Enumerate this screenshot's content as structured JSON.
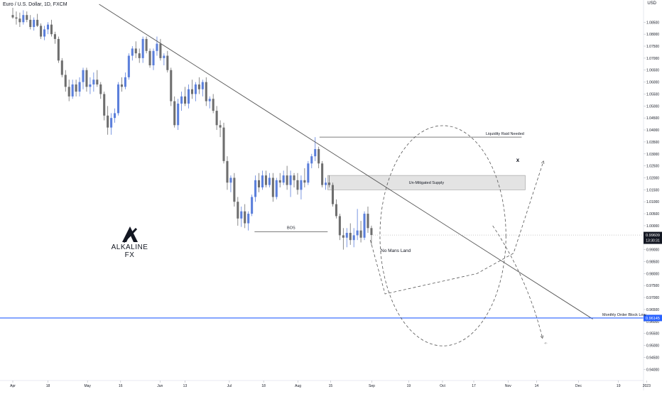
{
  "header": {
    "title": "Euro / U.S. Dollar, 1D, FXCM",
    "currency": "USD"
  },
  "brand": {
    "name": "ALKALINE FX",
    "logo_icon": "alkaline-logo-icon"
  },
  "annotations": {
    "liquidity_raid": "Liquidity Raid Needed",
    "supply_zone": "Un-Mitigated Supply",
    "no_mans_land": "No Mans Land",
    "bos": "BOS",
    "order_block": "Monthly Order Block Low",
    "x_mark": "x",
    "path_end_mark": "-//-"
  },
  "price_tags": {
    "current_price": "0.99609",
    "countdown": "13:30:31",
    "order_block_price": "0.96145"
  },
  "colors": {
    "bull": "#5b7fdb",
    "bear": "#6e6e6e",
    "horizontal_line": "#2962ff",
    "current_tag": "#131722",
    "trendline": "#555555"
  },
  "chart_data": {
    "type": "candlestick",
    "title": "Euro / U.S. Dollar, 1D, FXCM",
    "y_axis_label": "USD",
    "ylim": [
      0.938,
      1.0925
    ],
    "y_ticks": [
      "1.08500",
      "1.08000",
      "1.07500",
      "1.07000",
      "1.06500",
      "1.06000",
      "1.05500",
      "1.05000",
      "1.04500",
      "1.04000",
      "1.03500",
      "1.03000",
      "1.02500",
      "1.02000",
      "1.01500",
      "1.01000",
      "1.00500",
      "1.00000",
      "0.99500",
      "0.99000",
      "0.98500",
      "0.98000",
      "0.97500",
      "0.97000",
      "0.96500",
      "0.96000",
      "0.95500",
      "0.95000",
      "0.94500",
      "0.94000"
    ],
    "x_ticks": [
      {
        "label": "Apr",
        "t": 0
      },
      {
        "label": "18",
        "t": 0.0692
      },
      {
        "label": "May",
        "t": 0.1471
      },
      {
        "label": "16",
        "t": 0.2123
      },
      {
        "label": "Jun",
        "t": 0.2899
      },
      {
        "label": "13",
        "t": 0.3391
      },
      {
        "label": "Jul",
        "t": 0.4264
      },
      {
        "label": "18",
        "t": 0.4939
      },
      {
        "label": "Aug",
        "t": 0.5617
      },
      {
        "label": "15",
        "t": 0.6257
      },
      {
        "label": "Sep",
        "t": 0.707
      },
      {
        "label": "19",
        "t": 0.7796
      },
      {
        "label": "Oct",
        "t": 0.8461
      },
      {
        "label": "17",
        "t": 0.9077
      },
      {
        "label": "Nov",
        "t": 0.9753
      },
      {
        "label": "14",
        "t": 1.0314
      },
      {
        "label": "Dec",
        "t": 1.114
      },
      {
        "label": "19",
        "t": 1.1926
      },
      {
        "label": "2023",
        "t": 1.248
      }
    ],
    "candles": [
      {
        "o": 1.088,
        "h": 1.091,
        "l": 1.0865,
        "c": 1.087
      },
      {
        "o": 1.087,
        "h": 1.0895,
        "l": 1.084,
        "c": 1.0865
      },
      {
        "o": 1.0865,
        "h": 1.089,
        "l": 1.083,
        "c": 1.085
      },
      {
        "o": 1.085,
        "h": 1.09,
        "l": 1.084,
        "c": 1.088
      },
      {
        "o": 1.088,
        "h": 1.0895,
        "l": 1.085,
        "c": 1.086
      },
      {
        "o": 1.086,
        "h": 1.088,
        "l": 1.082,
        "c": 1.083
      },
      {
        "o": 1.083,
        "h": 1.087,
        "l": 1.0815,
        "c": 1.086
      },
      {
        "o": 1.086,
        "h": 1.0885,
        "l": 1.083,
        "c": 1.0835
      },
      {
        "o": 1.0835,
        "h": 1.0845,
        "l": 1.078,
        "c": 1.079
      },
      {
        "o": 1.079,
        "h": 1.0835,
        "l": 1.0775,
        "c": 1.082
      },
      {
        "o": 1.082,
        "h": 1.085,
        "l": 1.08,
        "c": 1.084
      },
      {
        "o": 1.084,
        "h": 1.086,
        "l": 1.079,
        "c": 1.08
      },
      {
        "o": 1.08,
        "h": 1.081,
        "l": 1.076,
        "c": 1.078
      },
      {
        "o": 1.078,
        "h": 1.079,
        "l": 1.068,
        "c": 1.069
      },
      {
        "o": 1.069,
        "h": 1.07,
        "l": 1.062,
        "c": 1.063
      },
      {
        "o": 1.063,
        "h": 1.065,
        "l": 1.056,
        "c": 1.058
      },
      {
        "o": 1.058,
        "h": 1.061,
        "l": 1.052,
        "c": 1.054
      },
      {
        "o": 1.054,
        "h": 1.061,
        "l": 1.053,
        "c": 1.059
      },
      {
        "o": 1.059,
        "h": 1.061,
        "l": 1.054,
        "c": 1.056
      },
      {
        "o": 1.056,
        "h": 1.062,
        "l": 1.054,
        "c": 1.06
      },
      {
        "o": 1.06,
        "h": 1.066,
        "l": 1.057,
        "c": 1.065
      },
      {
        "o": 1.065,
        "h": 1.066,
        "l": 1.056,
        "c": 1.058
      },
      {
        "o": 1.058,
        "h": 1.062,
        "l": 1.055,
        "c": 1.059
      },
      {
        "o": 1.059,
        "h": 1.064,
        "l": 1.056,
        "c": 1.061
      },
      {
        "o": 1.061,
        "h": 1.065,
        "l": 1.058,
        "c": 1.059
      },
      {
        "o": 1.059,
        "h": 1.06,
        "l": 1.053,
        "c": 1.055
      },
      {
        "o": 1.055,
        "h": 1.056,
        "l": 1.044,
        "c": 1.046
      },
      {
        "o": 1.046,
        "h": 1.05,
        "l": 1.038,
        "c": 1.041
      },
      {
        "o": 1.041,
        "h": 1.047,
        "l": 1.038,
        "c": 1.045
      },
      {
        "o": 1.045,
        "h": 1.049,
        "l": 1.043,
        "c": 1.047
      },
      {
        "o": 1.047,
        "h": 1.06,
        "l": 1.046,
        "c": 1.059
      },
      {
        "o": 1.059,
        "h": 1.062,
        "l": 1.056,
        "c": 1.058
      },
      {
        "o": 1.058,
        "h": 1.064,
        "l": 1.057,
        "c": 1.062
      },
      {
        "o": 1.062,
        "h": 1.072,
        "l": 1.061,
        "c": 1.071
      },
      {
        "o": 1.071,
        "h": 1.075,
        "l": 1.069,
        "c": 1.074
      },
      {
        "o": 1.074,
        "h": 1.077,
        "l": 1.07,
        "c": 1.072
      },
      {
        "o": 1.072,
        "h": 1.074,
        "l": 1.068,
        "c": 1.07
      },
      {
        "o": 1.07,
        "h": 1.079,
        "l": 1.068,
        "c": 1.078
      },
      {
        "o": 1.078,
        "h": 1.079,
        "l": 1.072,
        "c": 1.073
      },
      {
        "o": 1.073,
        "h": 1.074,
        "l": 1.066,
        "c": 1.067
      },
      {
        "o": 1.067,
        "h": 1.074,
        "l": 1.065,
        "c": 1.073
      },
      {
        "o": 1.073,
        "h": 1.079,
        "l": 1.071,
        "c": 1.076
      },
      {
        "o": 1.076,
        "h": 1.078,
        "l": 1.069,
        "c": 1.07
      },
      {
        "o": 1.07,
        "h": 1.072,
        "l": 1.067,
        "c": 1.071
      },
      {
        "o": 1.071,
        "h": 1.073,
        "l": 1.064,
        "c": 1.065
      },
      {
        "o": 1.065,
        "h": 1.066,
        "l": 1.05,
        "c": 1.052
      },
      {
        "o": 1.052,
        "h": 1.054,
        "l": 1.041,
        "c": 1.042
      },
      {
        "o": 1.042,
        "h": 1.053,
        "l": 1.04,
        "c": 1.051
      },
      {
        "o": 1.051,
        "h": 1.056,
        "l": 1.048,
        "c": 1.054
      },
      {
        "o": 1.054,
        "h": 1.058,
        "l": 1.05,
        "c": 1.051
      },
      {
        "o": 1.051,
        "h": 1.059,
        "l": 1.049,
        "c": 1.057
      },
      {
        "o": 1.057,
        "h": 1.061,
        "l": 1.053,
        "c": 1.055
      },
      {
        "o": 1.055,
        "h": 1.06,
        "l": 1.052,
        "c": 1.059
      },
      {
        "o": 1.059,
        "h": 1.062,
        "l": 1.055,
        "c": 1.057
      },
      {
        "o": 1.057,
        "h": 1.061,
        "l": 1.054,
        "c": 1.06
      },
      {
        "o": 1.06,
        "h": 1.062,
        "l": 1.05,
        "c": 1.052
      },
      {
        "o": 1.052,
        "h": 1.054,
        "l": 1.049,
        "c": 1.053
      },
      {
        "o": 1.053,
        "h": 1.055,
        "l": 1.047,
        "c": 1.048
      },
      {
        "o": 1.048,
        "h": 1.05,
        "l": 1.04,
        "c": 1.042
      },
      {
        "o": 1.042,
        "h": 1.044,
        "l": 1.037,
        "c": 1.041
      },
      {
        "o": 1.041,
        "h": 1.043,
        "l": 1.026,
        "c": 1.027
      },
      {
        "o": 1.027,
        "h": 1.029,
        "l": 1.015,
        "c": 1.018
      },
      {
        "o": 1.018,
        "h": 1.021,
        "l": 1.014,
        "c": 1.02
      },
      {
        "o": 1.02,
        "h": 1.022,
        "l": 1.008,
        "c": 1.01
      },
      {
        "o": 1.01,
        "h": 1.012,
        "l": 1.0,
        "c": 1.003
      },
      {
        "o": 1.003,
        "h": 1.008,
        "l": 0.9995,
        "c": 1.006
      },
      {
        "o": 1.006,
        "h": 1.009,
        "l": 0.999,
        "c": 1.001
      },
      {
        "o": 1.001,
        "h": 1.006,
        "l": 0.998,
        "c": 1.005
      },
      {
        "o": 1.005,
        "h": 1.013,
        "l": 1.004,
        "c": 1.012
      },
      {
        "o": 1.012,
        "h": 1.021,
        "l": 1.01,
        "c": 1.019
      },
      {
        "o": 1.019,
        "h": 1.022,
        "l": 1.014,
        "c": 1.016
      },
      {
        "o": 1.016,
        "h": 1.023,
        "l": 1.015,
        "c": 1.021
      },
      {
        "o": 1.021,
        "h": 1.023,
        "l": 1.016,
        "c": 1.017
      },
      {
        "o": 1.017,
        "h": 1.022,
        "l": 1.016,
        "c": 1.02
      },
      {
        "o": 1.02,
        "h": 1.022,
        "l": 1.01,
        "c": 1.012
      },
      {
        "o": 1.012,
        "h": 1.02,
        "l": 1.011,
        "c": 1.019
      },
      {
        "o": 1.019,
        "h": 1.022,
        "l": 1.016,
        "c": 1.018
      },
      {
        "o": 1.018,
        "h": 1.023,
        "l": 1.017,
        "c": 1.021
      },
      {
        "o": 1.021,
        "h": 1.025,
        "l": 1.015,
        "c": 1.017
      },
      {
        "o": 1.017,
        "h": 1.023,
        "l": 1.012,
        "c": 1.021
      },
      {
        "o": 1.021,
        "h": 1.022,
        "l": 1.016,
        "c": 1.019
      },
      {
        "o": 1.019,
        "h": 1.022,
        "l": 1.013,
        "c": 1.015
      },
      {
        "o": 1.015,
        "h": 1.021,
        "l": 1.011,
        "c": 1.019
      },
      {
        "o": 1.019,
        "h": 1.024,
        "l": 1.016,
        "c": 1.018
      },
      {
        "o": 1.018,
        "h": 1.027,
        "l": 1.017,
        "c": 1.026
      },
      {
        "o": 1.026,
        "h": 1.03,
        "l": 1.024,
        "c": 1.029
      },
      {
        "o": 1.029,
        "h": 1.037,
        "l": 1.027,
        "c": 1.032
      },
      {
        "o": 1.032,
        "h": 1.033,
        "l": 1.024,
        "c": 1.026
      },
      {
        "o": 1.026,
        "h": 1.027,
        "l": 1.016,
        "c": 1.017
      },
      {
        "o": 1.017,
        "h": 1.02,
        "l": 1.015,
        "c": 1.018
      },
      {
        "o": 1.018,
        "h": 1.021,
        "l": 1.016,
        "c": 1.017
      },
      {
        "o": 1.017,
        "h": 1.018,
        "l": 1.008,
        "c": 1.009
      },
      {
        "o": 1.009,
        "h": 1.011,
        "l": 1.003,
        "c": 1.004
      },
      {
        "o": 1.004,
        "h": 1.005,
        "l": 0.994,
        "c": 0.996
      },
      {
        "o": 0.996,
        "h": 0.999,
        "l": 0.99,
        "c": 0.995
      },
      {
        "o": 0.995,
        "h": 0.999,
        "l": 0.991,
        "c": 0.997
      },
      {
        "o": 0.997,
        "h": 1.001,
        "l": 0.992,
        "c": 0.994
      },
      {
        "o": 0.994,
        "h": 0.999,
        "l": 0.991,
        "c": 0.996
      },
      {
        "o": 0.996,
        "h": 1.007,
        "l": 0.994,
        "c": 0.998
      },
      {
        "o": 0.998,
        "h": 1.002,
        "l": 0.993,
        "c": 0.995
      },
      {
        "o": 0.995,
        "h": 1.006,
        "l": 0.994,
        "c": 1.005
      },
      {
        "o": 1.005,
        "h": 1.008,
        "l": 0.997,
        "c": 0.999
      },
      {
        "o": 0.999,
        "h": 1.0,
        "l": 0.992,
        "c": 0.9961
      }
    ],
    "trendline": {
      "points": [
        {
          "t": 0.17,
          "price": 1.0925
        },
        {
          "t": 1.142,
          "price": 0.961
        }
      ]
    },
    "horizontal_lines": [
      {
        "name": "Monthly Order Block Low",
        "price": 0.96145
      },
      {
        "name": "Liquidity Raid Needed",
        "price": 1.037,
        "t_start": 0.604,
        "t_end": 1.002
      },
      {
        "name": "BOS",
        "price": 0.9975,
        "t_start": 0.476,
        "t_end": 0.62
      }
    ],
    "zones": [
      {
        "name": "Un-Mitigated Supply",
        "price_top": 1.021,
        "price_bottom": 1.015,
        "t_start": 0.62,
        "t_end": 1.009
      }
    ],
    "projection_paths": [
      {
        "name": "ellipse",
        "center_t": 0.847,
        "center_price": 0.9958,
        "half_width_t": 0.124,
        "half_height_price": 0.046,
        "style": "dashed"
      },
      {
        "name": "up-path",
        "style": "dashed",
        "points": [
          {
            "t": 0.704,
            "price": 0.994
          },
          {
            "t": 0.733,
            "price": 0.9715
          },
          {
            "t": 0.914,
            "price": 0.98
          },
          {
            "t": 0.986,
            "price": 0.9885
          },
          {
            "t": 1.045,
            "price": 1.027
          }
        ]
      },
      {
        "name": "down-path",
        "style": "dashed",
        "points": [
          {
            "t": 0.945,
            "price": 1.0
          },
          {
            "t": 1.014,
            "price": 0.978
          },
          {
            "t": 1.043,
            "price": 0.953
          }
        ]
      }
    ]
  }
}
